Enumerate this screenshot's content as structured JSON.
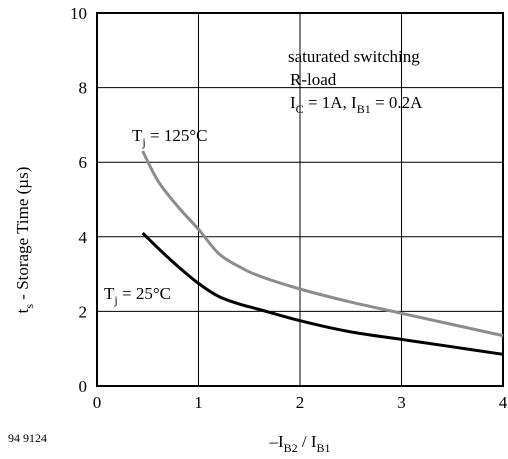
{
  "chart_data": {
    "type": "line",
    "xlim": [
      0,
      4
    ],
    "ylim": [
      0,
      10
    ],
    "x_ticks": [
      "0",
      "1",
      "2",
      "3",
      "4"
    ],
    "y_ticks": [
      "0",
      "2",
      "4",
      "6",
      "8",
      "10"
    ],
    "grid": true,
    "xlabel": {
      "prefix": "–I",
      "sub1": "B2",
      "mid": " / I",
      "sub2": "B1"
    },
    "ylabel": {
      "main": "t",
      "sub": "s",
      "rest": " - Storage Time (µs)"
    },
    "annotation": {
      "line1": "saturated switching",
      "line2": "R-load",
      "line3": {
        "a": "I",
        "a_sub": "C",
        "b": " = 1A, I",
        "b_sub": "B1",
        "c": " = 0.2A"
      }
    },
    "series": [
      {
        "name": "Tj = 125°C",
        "label": {
          "main": "T",
          "sub": "j",
          "rest": " = 125°C"
        },
        "color": "#8c8c8c",
        "x": [
          0.45,
          0.6,
          0.8,
          1.0,
          1.2,
          1.4,
          1.6,
          2.0,
          2.5,
          3.0,
          3.5,
          4.0
        ],
        "y": [
          6.3,
          5.5,
          4.8,
          4.2,
          3.55,
          3.2,
          2.95,
          2.6,
          2.25,
          1.95,
          1.65,
          1.35
        ]
      },
      {
        "name": "Tj = 25°C",
        "label": {
          "main": "T",
          "sub": "j",
          "rest": " = 25°C"
        },
        "color": "#000000",
        "x": [
          0.45,
          0.6,
          0.8,
          1.0,
          1.2,
          1.4,
          1.6,
          2.0,
          2.5,
          3.0,
          3.5,
          4.0
        ],
        "y": [
          4.1,
          3.7,
          3.2,
          2.75,
          2.4,
          2.2,
          2.05,
          1.75,
          1.45,
          1.25,
          1.05,
          0.85
        ]
      }
    ]
  },
  "figure_id": "94 9124"
}
